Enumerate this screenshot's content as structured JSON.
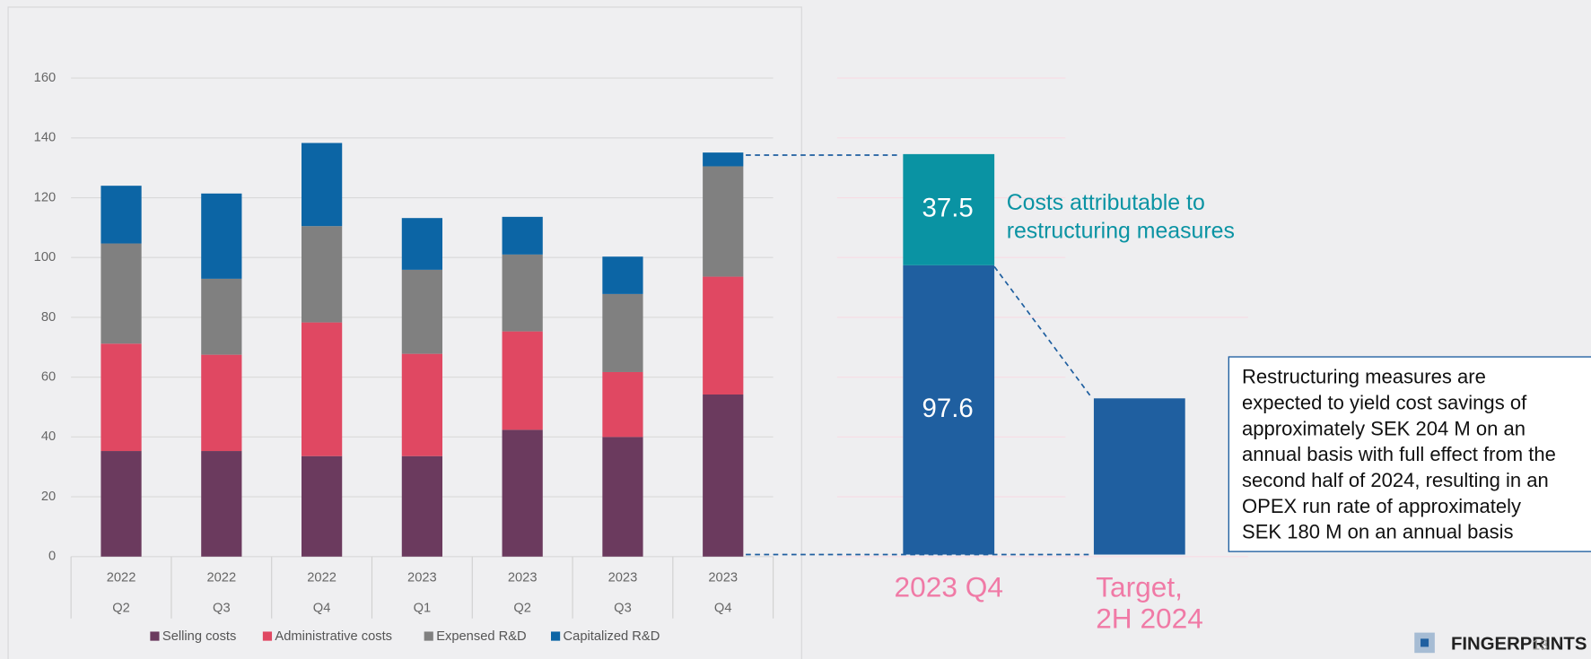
{
  "chart_data": [
    {
      "type": "stacked_bar",
      "categories": [
        "Q2",
        "Q3",
        "Q4",
        "Q1",
        "Q2",
        "Q3",
        "Q4"
      ],
      "years": [
        "2022",
        "2022",
        "2022",
        "2023",
        "2023",
        "2023",
        "2023"
      ],
      "series": [
        {
          "name": "Selling costs",
          "color": "#6b3a5e",
          "values": [
            35.3,
            35.3,
            33.6,
            33.6,
            42.4,
            40.0,
            54.2
          ]
        },
        {
          "name": "Administrative costs",
          "color": "#e04862",
          "values": [
            35.9,
            32.2,
            44.7,
            34.2,
            32.9,
            21.7,
            39.4
          ]
        },
        {
          "name": "Expensed R&D",
          "color": "#808080",
          "values": [
            33.5,
            25.4,
            32.2,
            28.1,
            25.7,
            26.1,
            36.9
          ]
        },
        {
          "name": "Capitalized R&D",
          "color": "#0c65a5",
          "values": [
            19.3,
            28.5,
            27.8,
            17.3,
            12.6,
            12.5,
            4.6
          ]
        }
      ],
      "ylim": [
        0,
        160
      ],
      "yticks": [
        0,
        20,
        40,
        60,
        80,
        100,
        120,
        140,
        160
      ],
      "grid": true,
      "legend": "bottom"
    },
    {
      "type": "stacked_bar",
      "categories": [
        [
          "2023 Q4"
        ],
        [
          "Target,",
          "2H 2024"
        ]
      ],
      "series": [
        {
          "color": "#1f5fa0",
          "values": [
            97.6,
            52.7
          ]
        },
        {
          "color": "#0a93a3",
          "values": [
            37.5,
            null
          ]
        }
      ],
      "ylim": [
        0,
        135.1
      ],
      "annotation": [
        "Costs attributable to",
        "restructuring measures"
      ],
      "note": [
        "Restructuring measures are",
        "expected to yield cost savings of",
        "approximately SEK 204 M on an",
        "annual basis with full effect from the",
        "second half of 2024, resulting in an",
        "OPEX run rate of approximately",
        "SEK 180 M on an annual basis"
      ]
    }
  ],
  "footer": {
    "brand": "FINGERPRINTS",
    "page": "13"
  }
}
